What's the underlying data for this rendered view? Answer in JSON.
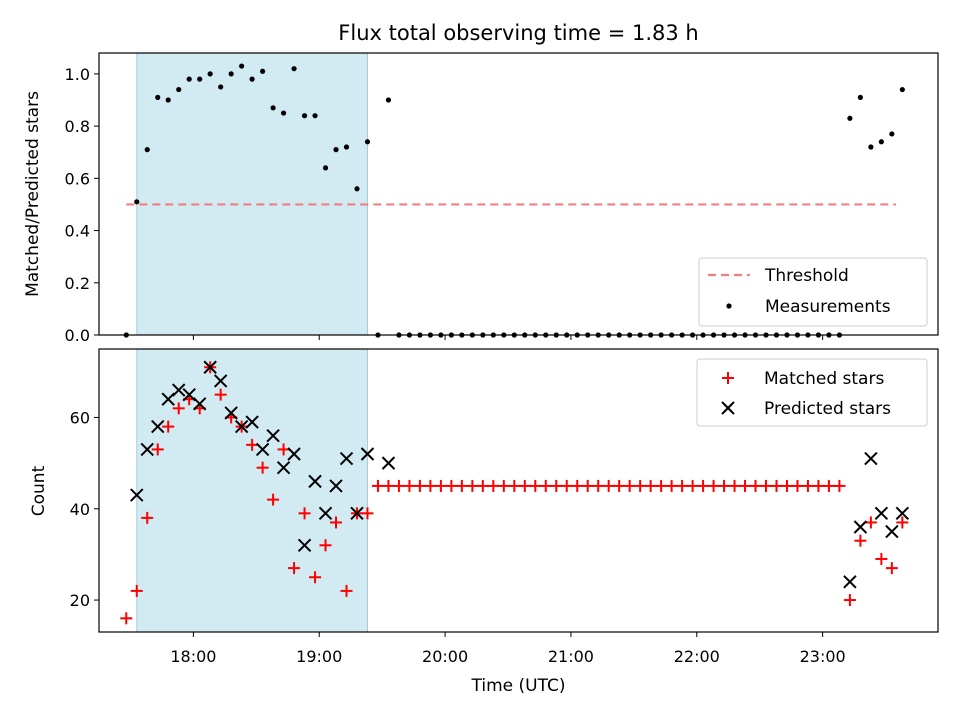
{
  "chart_data": [
    {
      "type": "scatter",
      "title": "Flux total observing time = 1.83 h",
      "ylabel": "Matched/Predicted stars",
      "xlabel": "",
      "xlim": [
        "17:15",
        "23:55"
      ],
      "ylim": [
        0,
        1.08
      ],
      "yticks": [
        "0.0",
        "0.2",
        "0.4",
        "0.6",
        "0.8",
        "1.0"
      ],
      "shaded_interval": [
        "17:33",
        "19:23"
      ],
      "threshold": {
        "name": "Threshold",
        "value": 0.5,
        "x": [
          "17:28",
          "23:35"
        ],
        "color": "#f08080"
      },
      "series": [
        {
          "name": "Measurements",
          "color": "#000000",
          "x": [
            "17:28",
            "17:33",
            "17:38",
            "17:43",
            "17:48",
            "17:53",
            "17:58",
            "18:03",
            "18:08",
            "18:13",
            "18:18",
            "18:23",
            "18:28",
            "18:33",
            "18:38",
            "18:43",
            "18:48",
            "18:53",
            "18:58",
            "19:03",
            "19:08",
            "19:13",
            "19:18",
            "19:23",
            "19:28",
            "19:33",
            "19:38",
            "19:43",
            "19:48",
            "19:53",
            "19:58",
            "20:03",
            "20:08",
            "20:13",
            "20:18",
            "20:23",
            "20:28",
            "20:33",
            "20:38",
            "20:43",
            "20:48",
            "20:53",
            "20:58",
            "21:03",
            "21:08",
            "21:13",
            "21:18",
            "21:23",
            "21:28",
            "21:33",
            "21:38",
            "21:43",
            "21:48",
            "21:53",
            "21:58",
            "22:03",
            "22:08",
            "22:13",
            "22:18",
            "22:23",
            "22:28",
            "22:33",
            "22:38",
            "22:43",
            "22:48",
            "22:53",
            "22:58",
            "23:03",
            "23:08",
            "23:13",
            "23:18",
            "23:23",
            "23:28",
            "23:33",
            "23:38"
          ],
          "y": [
            0,
            0.51,
            0.71,
            0.91,
            0.9,
            0.94,
            0.98,
            0.98,
            1.0,
            0.95,
            1.0,
            1.03,
            0.98,
            1.01,
            0.87,
            0.85,
            1.02,
            0.84,
            0.84,
            0.64,
            0.71,
            0.72,
            0.56,
            0.74,
            0,
            0.9,
            0,
            0,
            0,
            0,
            0,
            0,
            0,
            0,
            0,
            0,
            0,
            0,
            0,
            0,
            0,
            0,
            0,
            0,
            0,
            0,
            0,
            0,
            0,
            0,
            0,
            0,
            0,
            0,
            0,
            0,
            0,
            0,
            0,
            0,
            0,
            0,
            0,
            0,
            0,
            0,
            0,
            0,
            0,
            0.83,
            0.91,
            0.72,
            0.74,
            0.77,
            0.94
          ]
        }
      ],
      "legend": {
        "position": "lower-right",
        "entries": [
          "Threshold",
          "Measurements"
        ]
      }
    },
    {
      "type": "scatter",
      "title": "",
      "ylabel": "Count",
      "xlabel": "Time (UTC)",
      "xlim": [
        "17:15",
        "23:55"
      ],
      "ylim": [
        13,
        75
      ],
      "yticks": [
        "20",
        "40",
        "60"
      ],
      "xticks": [
        "18:00",
        "19:00",
        "20:00",
        "21:00",
        "22:00",
        "23:00"
      ],
      "shaded_interval": [
        "17:33",
        "19:23"
      ],
      "series": [
        {
          "name": "Matched stars",
          "marker": "+",
          "color": "#ff0000",
          "x": [
            "17:28",
            "17:33",
            "17:38",
            "17:43",
            "17:48",
            "17:53",
            "17:58",
            "18:03",
            "18:08",
            "18:13",
            "18:18",
            "18:23",
            "18:28",
            "18:33",
            "18:38",
            "18:43",
            "18:48",
            "18:53",
            "18:58",
            "19:03",
            "19:08",
            "19:13",
            "19:18",
            "19:23",
            "19:28",
            "19:33",
            "19:38",
            "19:43",
            "19:48",
            "19:53",
            "19:58",
            "20:03",
            "20:08",
            "20:13",
            "20:18",
            "20:23",
            "20:28",
            "20:33",
            "20:38",
            "20:43",
            "20:48",
            "20:53",
            "20:58",
            "21:03",
            "21:08",
            "21:13",
            "21:18",
            "21:23",
            "21:28",
            "21:33",
            "21:38",
            "21:43",
            "21:48",
            "21:53",
            "21:58",
            "22:03",
            "22:08",
            "22:13",
            "22:18",
            "22:23",
            "22:28",
            "22:33",
            "22:38",
            "22:43",
            "22:48",
            "22:53",
            "22:58",
            "23:03",
            "23:08",
            "23:13",
            "23:18",
            "23:23",
            "23:28",
            "23:33",
            "23:38"
          ],
          "y": [
            16,
            22,
            38,
            53,
            58,
            62,
            64,
            62,
            71,
            65,
            60,
            58,
            54,
            49,
            42,
            53,
            27,
            39,
            25,
            32,
            37,
            22,
            39,
            39,
            45,
            45,
            45,
            45,
            45,
            45,
            45,
            45,
            45,
            45,
            45,
            45,
            45,
            45,
            45,
            45,
            45,
            45,
            45,
            45,
            45,
            45,
            45,
            45,
            45,
            45,
            45,
            45,
            45,
            45,
            45,
            45,
            45,
            45,
            45,
            45,
            45,
            45,
            45,
            45,
            45,
            45,
            45,
            45,
            45,
            20,
            33,
            37,
            29,
            27,
            37
          ]
        },
        {
          "name": "Predicted stars",
          "marker": "x",
          "color": "#000000",
          "x": [
            "17:33",
            "17:38",
            "17:43",
            "17:48",
            "17:53",
            "17:58",
            "18:03",
            "18:08",
            "18:13",
            "18:18",
            "18:23",
            "18:28",
            "18:33",
            "18:38",
            "18:43",
            "18:48",
            "18:53",
            "18:58",
            "19:03",
            "19:08",
            "19:13",
            "19:18",
            "19:23",
            "19:33",
            "23:13",
            "23:18",
            "23:23",
            "23:28",
            "23:33",
            "23:38"
          ],
          "y": [
            43,
            53,
            58,
            64,
            66,
            65,
            63,
            71,
            68,
            61,
            58,
            59,
            53,
            56,
            49,
            52,
            32,
            46,
            39,
            45,
            51,
            39,
            52,
            50,
            24,
            36,
            51,
            39,
            35,
            39
          ]
        }
      ],
      "legend": {
        "position": "top-right",
        "entries": [
          "Matched stars",
          "Predicted stars"
        ]
      }
    }
  ]
}
